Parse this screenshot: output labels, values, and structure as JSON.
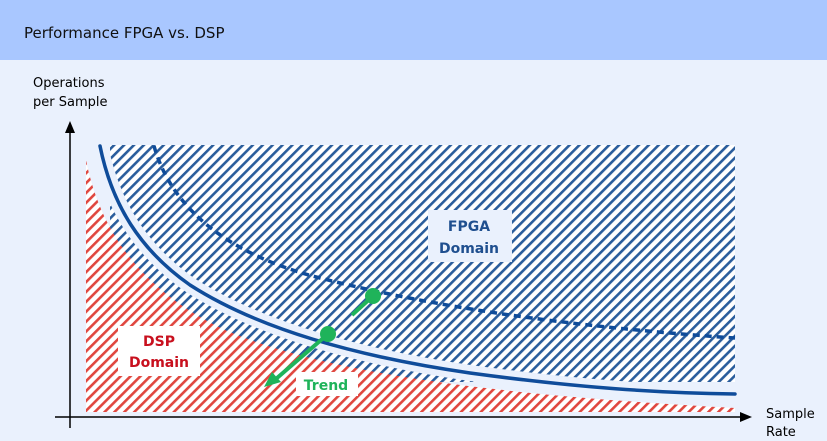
{
  "title": "Performance FPGA vs. DSP",
  "axes": {
    "y_label_line1": "Operations",
    "y_label_line2": "per Sample",
    "x_label_line1": "Sample",
    "x_label_line2": "Rate"
  },
  "regions": {
    "fpga_line1": "FPGA",
    "fpga_line2": "Domain",
    "dsp_line1": "DSP",
    "dsp_line2": "Domain"
  },
  "trend_label": "Trend",
  "colors": {
    "title_bar": "#a9c7ff",
    "background": "#eaf1fd",
    "fpga": "#2a5d9c",
    "dsp": "#e0473f",
    "dsp_text": "#c8101e",
    "trend": "#1fb35a",
    "curve": "#0f4c9a"
  }
}
